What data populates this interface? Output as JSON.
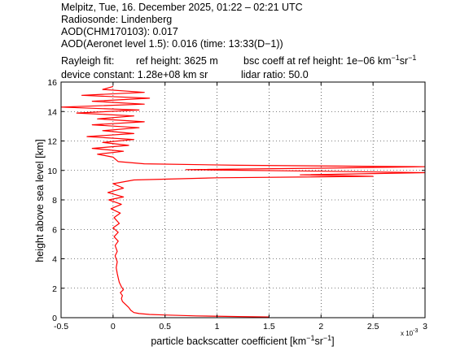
{
  "header": {
    "line1": "Melpitz, Tue, 16. December 2025, 01:22 – 02:21 UTC",
    "line2": "Radiosonde: Lindenberg",
    "line3": "AOD(CHM170103): 0.017",
    "line4": "AOD(Aeronet level 1.5): 0.016   (time: 13:33(D−1))",
    "rayleigh_label": "Rayleigh fit:",
    "ref_height": "ref height: 3625 m",
    "bsc_coeff_prefix": "bsc coeff at ref height: 1e−06 km",
    "bsc_exp1": "−1",
    "bsc_mid": "sr",
    "bsc_exp2": "−1",
    "device_constant": "device constant: 1.28e+08 km sr",
    "lidar_ratio": "lidar ratio: 50.0"
  },
  "colors": {
    "series": "#ff0000",
    "axes": "#000000",
    "grid": "#000000",
    "background": "#ffffff"
  },
  "chart_data": {
    "type": "line",
    "title": "",
    "xlabel_main": "particle backscatter coefficient [km",
    "xlabel_exp1": "−1",
    "xlabel_mid": "sr",
    "xlabel_exp2": "−1",
    "xlabel_end": "]",
    "ylabel": "height above sea level [km]",
    "x_scale_label": "x 10",
    "x_scale_exp": "-3",
    "xlim": [
      -0.5,
      3.0
    ],
    "ylim": [
      0,
      16
    ],
    "grid": true,
    "x_ticks": [
      -0.5,
      0,
      0.5,
      1,
      1.5,
      2,
      2.5,
      3
    ],
    "x_tick_labels": [
      "-0.5",
      "0",
      "0.5",
      "1",
      "1.5",
      "2",
      "2.5",
      "3"
    ],
    "y_ticks": [
      0,
      2,
      4,
      6,
      8,
      10,
      12,
      14,
      16
    ],
    "y_tick_labels": [
      "0",
      "2",
      "4",
      "6",
      "8",
      "10",
      "12",
      "14",
      "16"
    ],
    "series": [
      {
        "x_units": "1e-3 km^-1 sr^-1",
        "points": [
          [
            1.5,
            0.05
          ],
          [
            1.2,
            0.08
          ],
          [
            0.8,
            0.12
          ],
          [
            0.5,
            0.18
          ],
          [
            0.35,
            0.22
          ],
          [
            0.25,
            0.28
          ],
          [
            0.2,
            0.35
          ],
          [
            0.17,
            0.5
          ],
          [
            0.15,
            0.7
          ],
          [
            0.12,
            0.9
          ],
          [
            0.09,
            1.1
          ],
          [
            0.08,
            1.3
          ],
          [
            0.09,
            1.5
          ],
          [
            0.07,
            1.7
          ],
          [
            0.1,
            1.9
          ],
          [
            0.08,
            2.1
          ],
          [
            0.06,
            2.4
          ],
          [
            0.05,
            2.7
          ],
          [
            0.04,
            3.0
          ],
          [
            0.03,
            3.4
          ],
          [
            0.04,
            3.8
          ],
          [
            0.02,
            4.2
          ],
          [
            0.04,
            4.5
          ],
          [
            0.02,
            4.9
          ],
          [
            0.05,
            5.2
          ],
          [
            0.01,
            5.5
          ],
          [
            0.05,
            5.8
          ],
          [
            0.0,
            6.1
          ],
          [
            0.06,
            6.4
          ],
          [
            0.01,
            6.8
          ],
          [
            0.07,
            7.1
          ],
          [
            -0.02,
            7.4
          ],
          [
            0.08,
            7.7
          ],
          [
            -0.04,
            8.0
          ],
          [
            0.1,
            8.2
          ],
          [
            -0.05,
            8.5
          ],
          [
            0.1,
            8.8
          ],
          [
            0.0,
            9.1
          ],
          [
            0.2,
            9.35
          ],
          [
            1.0,
            9.5
          ],
          [
            2.5,
            9.6
          ],
          [
            1.8,
            9.7
          ],
          [
            3.0,
            9.85
          ],
          [
            2.0,
            9.95
          ],
          [
            0.7,
            10.05
          ],
          [
            2.0,
            10.15
          ],
          [
            3.0,
            10.25
          ],
          [
            1.2,
            10.35
          ],
          [
            0.3,
            10.45
          ],
          [
            0.05,
            10.6
          ],
          [
            0.0,
            10.9
          ],
          [
            -0.15,
            11.1
          ],
          [
            0.1,
            11.3
          ],
          [
            -0.2,
            11.5
          ],
          [
            0.15,
            11.7
          ],
          [
            -0.1,
            11.9
          ],
          [
            0.2,
            12.1
          ],
          [
            -0.25,
            12.3
          ],
          [
            0.2,
            12.5
          ],
          [
            -0.1,
            12.7
          ],
          [
            0.25,
            12.9
          ],
          [
            -0.2,
            13.1
          ],
          [
            0.3,
            13.3
          ],
          [
            -0.15,
            13.5
          ],
          [
            0.2,
            13.7
          ],
          [
            -0.35,
            13.9
          ],
          [
            0.25,
            14.1
          ],
          [
            -0.5,
            14.3
          ],
          [
            0.3,
            14.5
          ],
          [
            -0.2,
            14.7
          ],
          [
            0.35,
            14.9
          ],
          [
            -0.3,
            15.1
          ],
          [
            0.3,
            15.3
          ],
          [
            -0.1,
            15.5
          ],
          [
            0.0,
            15.7
          ]
        ]
      }
    ]
  }
}
